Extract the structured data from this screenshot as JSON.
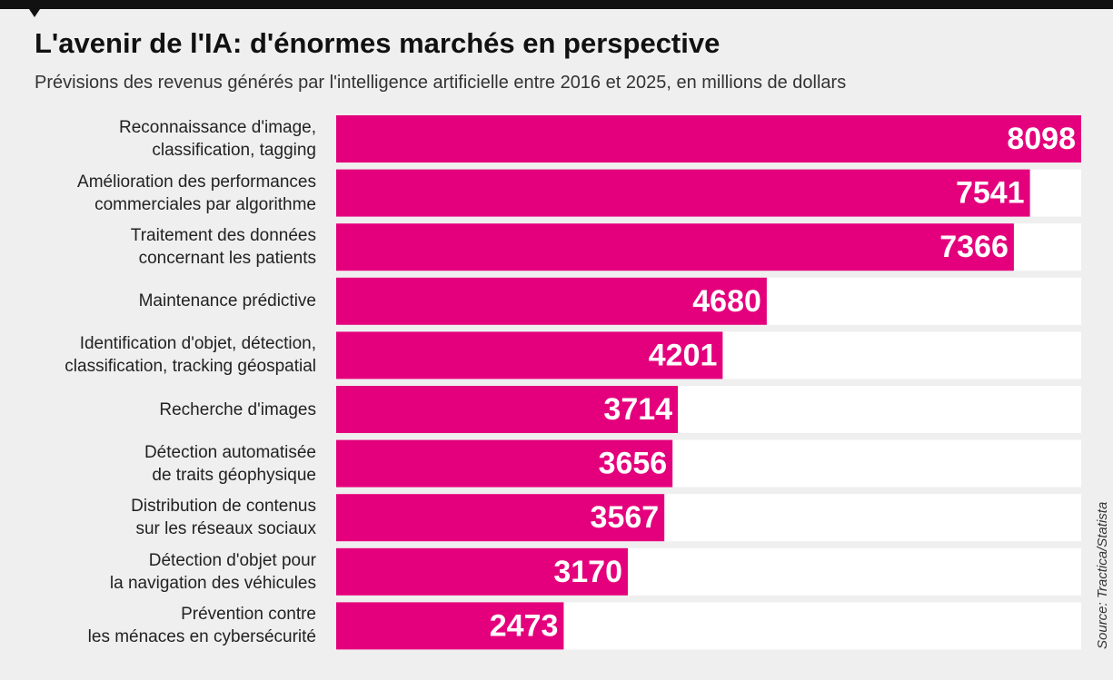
{
  "chart_data": {
    "type": "bar",
    "orientation": "horizontal",
    "title": "L'avenir de l'IA: d'énormes marchés en perspective",
    "subtitle": "Prévisions des revenus générés par l'intelligence artificielle entre 2016 et 2025, en millions de dollars",
    "source": "Source: Tractica/Statista",
    "color": "#e4007c",
    "categories": [
      "Reconnaissance d'image,\nclassification, tagging",
      "Amélioration des performances\ncommerciales par algorithme",
      "Traitement des données\nconcernant les patients",
      "Maintenance prédictive",
      "Identification d'objet, détection,\nclassification, tracking géospatial",
      "Recherche d'images",
      "Détection automatisée\nde traits géophysique",
      "Distribution de contenus\nsur les réseaux sociaux",
      "Détection d'objet pour\nla navigation des véhicules",
      "Prévention contre\nles ménaces en cybersécurité"
    ],
    "values": [
      8098,
      7541,
      7366,
      4680,
      4201,
      3714,
      3656,
      3567,
      3170,
      2473
    ]
  }
}
